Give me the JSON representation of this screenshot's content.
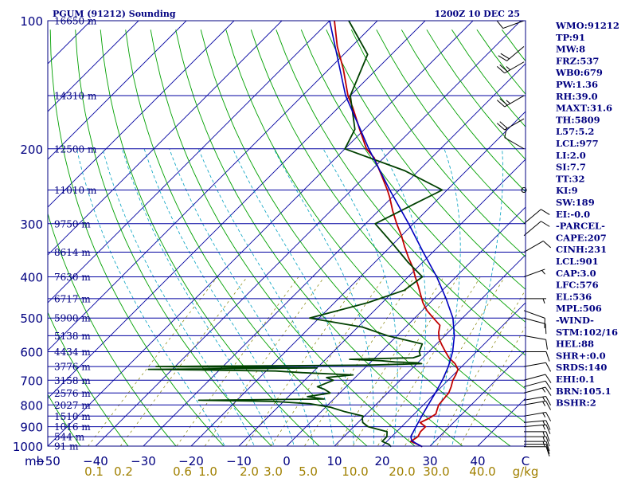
{
  "header": {
    "station_title": "PGUM (91212) Sounding",
    "time_label": "1200Z 10 DEC 25"
  },
  "colors": {
    "frame": "#000080",
    "isobar": "#0000a0",
    "isotherm": "#0000a0",
    "dry_adiabat": "#00a000",
    "moist_adiabat": "#00a0c0",
    "mixing_ratio": "#808000",
    "temperature": "#c00000",
    "dewpoint": "#004000",
    "parcel": "#0000c0",
    "bottom_text": "#a08000",
    "index_text": "#000080",
    "barbs": "#000000"
  },
  "chart_data": {
    "type": "line",
    "chart_kind": "skew-T log-P sounding",
    "xlabel": "",
    "ylabel": "mb",
    "pressure_range_mb": [
      1000,
      100
    ],
    "temperature_range_c": [
      -50,
      50
    ],
    "pressure_tick_labels": [
      "100",
      "200",
      "300",
      "400",
      "500",
      "600",
      "700",
      "800",
      "900",
      "1000"
    ],
    "pressure_unit_label": "mb",
    "temperature_tick_labels": [
      "−50",
      "−40",
      "−30",
      "−20",
      "−10",
      "0",
      "10",
      "20",
      "30",
      "40",
      "C"
    ],
    "mixing_ratio_labels": [
      "0.1",
      "0.2",
      "0.6",
      "1.0",
      "2.0",
      "3.0",
      "5.0",
      "10.0",
      "20.0",
      "30.0",
      "40.0",
      "g/kg"
    ],
    "height_labels": [
      {
        "p": 100,
        "text": "16650 m"
      },
      {
        "p": 150,
        "text": "14310 m"
      },
      {
        "p": 200,
        "text": "12500 m"
      },
      {
        "p": 250,
        "text": "11010 m"
      },
      {
        "p": 300,
        "text": "9750 m"
      },
      {
        "p": 350,
        "text": "8614 m"
      },
      {
        "p": 400,
        "text": "7630 m"
      },
      {
        "p": 450,
        "text": "6717 m"
      },
      {
        "p": 500,
        "text": "5900 m"
      },
      {
        "p": 550,
        "text": "5138 m"
      },
      {
        "p": 600,
        "text": "4434 m"
      },
      {
        "p": 650,
        "text": "3776 m"
      },
      {
        "p": 700,
        "text": "3158 m"
      },
      {
        "p": 750,
        "text": "2576 m"
      },
      {
        "p": 800,
        "text": "2027 m"
      },
      {
        "p": 850,
        "text": "1510 m"
      },
      {
        "p": 900,
        "text": "1016 m"
      },
      {
        "p": 950,
        "text": "544 m"
      },
      {
        "p": 1000,
        "text": "91 m"
      }
    ],
    "series": [
      {
        "role": "temperature",
        "points": [
          [
            1003,
            28.5
          ],
          [
            990,
            27
          ],
          [
            975,
            25
          ],
          [
            950,
            25.5
          ],
          [
            925,
            25
          ],
          [
            900,
            25
          ],
          [
            880,
            23
          ],
          [
            860,
            24
          ],
          [
            840,
            24.5
          ],
          [
            825,
            24
          ],
          [
            800,
            23.2
          ],
          [
            775,
            23
          ],
          [
            750,
            22.8
          ],
          [
            725,
            22
          ],
          [
            700,
            21
          ],
          [
            680,
            20.5
          ],
          [
            660,
            19.8
          ],
          [
            640,
            18
          ],
          [
            620,
            15.5
          ],
          [
            600,
            13.5
          ],
          [
            580,
            11.5
          ],
          [
            560,
            9.5
          ],
          [
            540,
            8
          ],
          [
            520,
            6.8
          ],
          [
            500,
            3.9
          ],
          [
            480,
            1
          ],
          [
            460,
            -1.5
          ],
          [
            440,
            -3.7
          ],
          [
            420,
            -6
          ],
          [
            400,
            -8.5
          ],
          [
            380,
            -11
          ],
          [
            360,
            -14
          ],
          [
            340,
            -17
          ],
          [
            320,
            -20
          ],
          [
            300,
            -23.5
          ],
          [
            280,
            -27
          ],
          [
            260,
            -30.5
          ],
          [
            250,
            -32.5
          ],
          [
            230,
            -37
          ],
          [
            210,
            -42
          ],
          [
            200,
            -45.5
          ],
          [
            180,
            -51
          ],
          [
            160,
            -57
          ],
          [
            150,
            -60.5
          ],
          [
            130,
            -67
          ],
          [
            115,
            -73
          ],
          [
            100,
            -79
          ]
        ]
      },
      {
        "role": "dewpoint",
        "points": [
          [
            1003,
            22
          ],
          [
            990,
            21
          ],
          [
            975,
            19
          ],
          [
            950,
            19
          ],
          [
            925,
            18
          ],
          [
            900,
            13
          ],
          [
            880,
            11
          ],
          [
            860,
            10
          ],
          [
            850,
            9.7
          ],
          [
            830,
            5
          ],
          [
            810,
            1
          ],
          [
            795,
            -4
          ],
          [
            785,
            -12
          ],
          [
            780,
            -28
          ],
          [
            775,
            -2
          ],
          [
            765,
            -6
          ],
          [
            750,
            -2
          ],
          [
            735,
            -4
          ],
          [
            725,
            -6
          ],
          [
            700,
            -4
          ],
          [
            690,
            -6
          ],
          [
            680,
            -1
          ],
          [
            672,
            -12
          ],
          [
            666,
            -18
          ],
          [
            660,
            -45
          ],
          [
            655,
            -10
          ],
          [
            650,
            -44
          ],
          [
            645,
            0
          ],
          [
            640,
            11
          ],
          [
            637,
            10
          ],
          [
            634,
            5
          ],
          [
            630,
            2
          ],
          [
            625,
            -5
          ],
          [
            620,
            8
          ],
          [
            612,
            9
          ],
          [
            600,
            8
          ],
          [
            575,
            7
          ],
          [
            550,
            -2
          ],
          [
            525,
            -9
          ],
          [
            500,
            -22
          ],
          [
            460,
            -13
          ],
          [
            430,
            -8
          ],
          [
            400,
            -7
          ],
          [
            370,
            -13
          ],
          [
            335,
            -20
          ],
          [
            300,
            -28
          ],
          [
            270,
            -24
          ],
          [
            250,
            -21
          ],
          [
            225,
            -33
          ],
          [
            200,
            -50
          ],
          [
            180,
            -52
          ],
          [
            150,
            -60
          ],
          [
            120,
            -65
          ],
          [
            100,
            -76
          ]
        ]
      },
      {
        "role": "parcel",
        "points": [
          [
            1003,
            28.5
          ],
          [
            985,
            26.5
          ],
          [
            970,
            25
          ],
          [
            950,
            24
          ],
          [
            900,
            23
          ],
          [
            850,
            22
          ],
          [
            800,
            21
          ],
          [
            750,
            20
          ],
          [
            700,
            18.8
          ],
          [
            650,
            17.2
          ],
          [
            600,
            15
          ],
          [
            550,
            12
          ],
          [
            500,
            8
          ],
          [
            450,
            2.5
          ],
          [
            400,
            -4
          ],
          [
            350,
            -12
          ],
          [
            300,
            -21
          ],
          [
            250,
            -32
          ],
          [
            200,
            -45
          ],
          [
            150,
            -61
          ],
          [
            100,
            -80
          ]
        ]
      }
    ],
    "wind_barbs": [
      {
        "p": 1003,
        "dir": 90,
        "spd": 10
      },
      {
        "p": 990,
        "dir": 90,
        "spd": 10
      },
      {
        "p": 975,
        "dir": 90,
        "spd": 15
      },
      {
        "p": 950,
        "dir": 90,
        "spd": 15
      },
      {
        "p": 925,
        "dir": 90,
        "spd": 15
      },
      {
        "p": 900,
        "dir": 85,
        "spd": 15
      },
      {
        "p": 880,
        "dir": 85,
        "spd": 15
      },
      {
        "p": 850,
        "dir": 80,
        "spd": 15
      },
      {
        "p": 800,
        "dir": 80,
        "spd": 15
      },
      {
        "p": 780,
        "dir": 80,
        "spd": 15
      },
      {
        "p": 750,
        "dir": 75,
        "spd": 15
      },
      {
        "p": 725,
        "dir": 75,
        "spd": 10
      },
      {
        "p": 700,
        "dir": 75,
        "spd": 10
      },
      {
        "p": 650,
        "dir": 80,
        "spd": 10
      },
      {
        "p": 600,
        "dir": 90,
        "spd": 10
      },
      {
        "p": 550,
        "dir": 100,
        "spd": 10
      },
      {
        "p": 500,
        "dir": 105,
        "spd": 10
      },
      {
        "p": 480,
        "dir": 110,
        "spd": 10
      },
      {
        "p": 450,
        "dir": 90,
        "spd": 5
      },
      {
        "p": 400,
        "dir": 70,
        "spd": 5
      },
      {
        "p": 350,
        "dir": 60,
        "spd": 10
      },
      {
        "p": 320,
        "dir": 50,
        "spd": 10
      },
      {
        "p": 300,
        "dir": 50,
        "spd": 10
      },
      {
        "p": 250,
        "dir": 0,
        "spd": 0
      },
      {
        "p": 200,
        "dir": 300,
        "spd": 10
      },
      {
        "p": 170,
        "dir": 240,
        "spd": 20
      },
      {
        "p": 150,
        "dir": 240,
        "spd": 25
      },
      {
        "p": 125,
        "dir": 240,
        "spd": 25
      },
      {
        "p": 115,
        "dir": 230,
        "spd": 20
      },
      {
        "p": 100,
        "dir": 250,
        "spd": 10
      }
    ]
  },
  "indices": [
    "WMO:91212",
    "TP:91",
    "MW:8",
    "FRZ:537",
    "WB0:679",
    "PW:1.36",
    "RH:39.0",
    "MAXT:31.6",
    "TH:5809",
    "L57:5.2",
    "LCL:977",
    "LI:2.0",
    "SI:7.7",
    "TT:32",
    "KI:9",
    "SW:189",
    "EI:-0.0",
    "-PARCEL-",
    "CAPE:207",
    "CINH:231",
    "LCL:901",
    "CAP:3.0",
    "LFC:576",
    "EL:536",
    "MPL:506",
    "-WIND-",
    "STM:102/16",
    "HEL:88",
    "SHR+:0.0",
    "SRDS:140",
    "EHI:0.1",
    "BRN:105.1",
    "BSHR:2"
  ]
}
